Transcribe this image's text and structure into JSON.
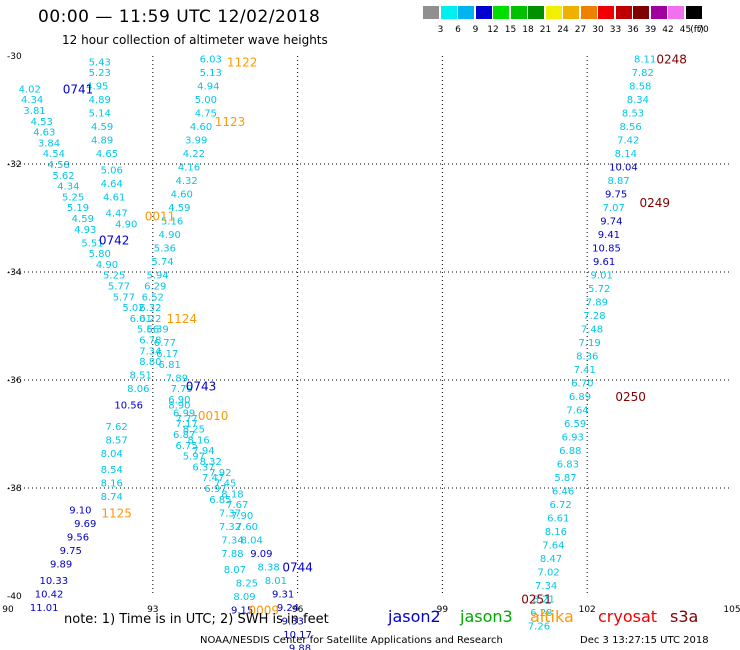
{
  "header": {
    "title": "00:00 — 11:59 UTC 12/02/2018",
    "subtitle": "12 hour collection of altimeter wave heights"
  },
  "color_scale": {
    "ticks": [
      "3",
      "6",
      "9",
      "12",
      "15",
      "18",
      "21",
      "24",
      "27",
      "30",
      "33",
      "36",
      "39",
      "42",
      "45",
      "70",
      "(ft)"
    ],
    "colors": [
      "#909090",
      "#00f0f0",
      "#00b4f0",
      "#0000d0",
      "#00e000",
      "#00c000",
      "#009000",
      "#f0f000",
      "#f0b000",
      "#f08000",
      "#f00000",
      "#c00000",
      "#800000",
      "#a000a0",
      "#f070f0",
      "#000000"
    ]
  },
  "chart_data": {
    "type": "scatter",
    "title": "00:00 — 11:59 UTC 12/02/2018",
    "subtitle": "12 hour collection of altimeter wave heights",
    "xlim": [
      90,
      105
    ],
    "ylim": [
      -40,
      -30
    ],
    "x_ticks": [
      "90",
      "93",
      "96",
      "99",
      "102",
      "105"
    ],
    "y_ticks": [
      "-30",
      "-32",
      "-34",
      "-36",
      "-38",
      "-40"
    ],
    "grid": true,
    "point_colors": {
      "c": "#00c8e6",
      "b": "#0000c8"
    },
    "time_colors": {
      "jason2": "#0000cc",
      "altika": "#ff9900",
      "s3a": "#800000"
    },
    "points": [
      [
        91.9,
        -30.1,
        "5.43",
        "c"
      ],
      [
        91.9,
        -30.3,
        "5.23",
        "c"
      ],
      [
        91.85,
        -30.55,
        "4.95",
        "c"
      ],
      [
        91.9,
        -30.8,
        "4.89",
        "c"
      ],
      [
        91.9,
        -31.05,
        "5.14",
        "c"
      ],
      [
        91.95,
        -31.3,
        "4.59",
        "c"
      ],
      [
        91.95,
        -31.55,
        "4.89",
        "c"
      ],
      [
        92.05,
        -31.8,
        "4.65",
        "c"
      ],
      [
        92.15,
        -32.1,
        "5.06",
        "c"
      ],
      [
        92.15,
        -32.35,
        "4.64",
        "c"
      ],
      [
        92.2,
        -32.6,
        "4.61",
        "c"
      ],
      [
        92.25,
        -32.9,
        "4.47",
        "c"
      ],
      [
        92.45,
        -33.1,
        "4.90",
        "c"
      ],
      [
        90.45,
        -30.6,
        "4.02",
        "c"
      ],
      [
        90.5,
        -30.8,
        "4.34",
        "c"
      ],
      [
        90.55,
        -31.0,
        "3.81",
        "c"
      ],
      [
        90.7,
        -31.2,
        "4.53",
        "c"
      ],
      [
        90.75,
        -31.4,
        "4.63",
        "c"
      ],
      [
        90.85,
        -31.6,
        "3.84",
        "c"
      ],
      [
        90.95,
        -31.8,
        "4.54",
        "c"
      ],
      [
        91.05,
        -32.0,
        "4.58",
        "c"
      ],
      [
        91.15,
        -32.2,
        "5.62",
        "c"
      ],
      [
        91.25,
        -32.4,
        "4.34",
        "c"
      ],
      [
        91.35,
        -32.6,
        "5.25",
        "c"
      ],
      [
        91.45,
        -32.8,
        "5.19",
        "c"
      ],
      [
        91.55,
        -33.0,
        "4.59",
        "c"
      ],
      [
        91.6,
        -33.2,
        "4.93",
        "c"
      ],
      [
        91.75,
        -33.45,
        "5.51",
        "c"
      ],
      [
        91.9,
        -33.65,
        "5.80",
        "c"
      ],
      [
        92.05,
        -33.85,
        "4.90",
        "c"
      ],
      [
        92.2,
        -34.05,
        "5.25",
        "c"
      ],
      [
        92.3,
        -34.25,
        "5.77",
        "c"
      ],
      [
        92.4,
        -34.45,
        "5.77",
        "c"
      ],
      [
        92.6,
        -34.65,
        "5.02",
        "c"
      ],
      [
        92.75,
        -34.85,
        "6.01",
        "c"
      ],
      [
        92.9,
        -35.05,
        "5.56",
        "c"
      ],
      [
        92.95,
        -35.25,
        "6.78",
        "c"
      ],
      [
        92.95,
        -35.45,
        "7.34",
        "c"
      ],
      [
        92.95,
        -35.65,
        "8.80",
        "c"
      ],
      [
        92.75,
        -35.9,
        "8.51",
        "c"
      ],
      [
        92.7,
        -36.15,
        "8.06",
        "c"
      ],
      [
        92.5,
        -36.45,
        "10.56",
        "b"
      ],
      [
        92.25,
        -36.85,
        "7.62",
        "c"
      ],
      [
        92.25,
        -37.1,
        "8.57",
        "c"
      ],
      [
        92.15,
        -37.35,
        "8.04",
        "c"
      ],
      [
        92.15,
        -37.65,
        "8.54",
        "c"
      ],
      [
        92.15,
        -37.9,
        "8.16",
        "c"
      ],
      [
        92.15,
        -38.15,
        "8.74",
        "c"
      ],
      [
        91.5,
        -38.4,
        "9.10",
        "b"
      ],
      [
        91.6,
        -38.65,
        "9.69",
        "b"
      ],
      [
        91.45,
        -38.9,
        "9.56",
        "b"
      ],
      [
        91.3,
        -39.15,
        "9.75",
        "b"
      ],
      [
        91.1,
        -39.4,
        "9.89",
        "b"
      ],
      [
        90.95,
        -39.7,
        "10.33",
        "b"
      ],
      [
        90.85,
        -39.95,
        "10.42",
        "b"
      ],
      [
        90.75,
        -40.2,
        "11.01",
        "b"
      ],
      [
        94.2,
        -30.05,
        "6.03",
        "c"
      ],
      [
        94.2,
        -30.3,
        "5.13",
        "c"
      ],
      [
        94.15,
        -30.55,
        "4.94",
        "c"
      ],
      [
        94.1,
        -30.8,
        "5.00",
        "c"
      ],
      [
        94.1,
        -31.05,
        "4.75",
        "c"
      ],
      [
        94.0,
        -31.3,
        "4.60",
        "c"
      ],
      [
        93.9,
        -31.55,
        "3.99",
        "c"
      ],
      [
        93.85,
        -31.8,
        "4.22",
        "c"
      ],
      [
        93.75,
        -32.05,
        "4.16",
        "c"
      ],
      [
        93.7,
        -32.3,
        "4.32",
        "c"
      ],
      [
        93.6,
        -32.55,
        "4.60",
        "c"
      ],
      [
        93.55,
        -32.8,
        "4.59",
        "c"
      ],
      [
        93.4,
        -33.05,
        "5.16",
        "c"
      ],
      [
        93.35,
        -33.3,
        "4.90",
        "c"
      ],
      [
        93.25,
        -33.55,
        "5.36",
        "c"
      ],
      [
        93.2,
        -33.8,
        "5.74",
        "c"
      ],
      [
        93.1,
        -34.05,
        "5.94",
        "c"
      ],
      [
        93.05,
        -34.25,
        "6.29",
        "c"
      ],
      [
        93.0,
        -34.45,
        "6.52",
        "c"
      ],
      [
        92.95,
        -34.65,
        "6.32",
        "c"
      ],
      [
        92.95,
        -34.85,
        "6.22",
        "c"
      ],
      [
        93.1,
        -35.05,
        "6.39",
        "c"
      ],
      [
        93.25,
        -35.3,
        "6.77",
        "c"
      ],
      [
        93.3,
        -35.5,
        "6.17",
        "c"
      ],
      [
        93.35,
        -35.7,
        "6.81",
        "c"
      ],
      [
        93.5,
        -35.95,
        "7.89",
        "c"
      ],
      [
        93.6,
        -36.15,
        "7.79",
        "c"
      ],
      [
        93.55,
        -36.35,
        "6.90",
        "c"
      ],
      [
        93.65,
        -36.6,
        "6.99",
        "c"
      ],
      [
        93.7,
        -36.8,
        "7.17",
        "c"
      ],
      [
        93.65,
        -37.0,
        "6.87",
        "c"
      ],
      [
        93.7,
        -37.2,
        "6.75",
        "c"
      ],
      [
        93.85,
        -37.4,
        "5.97",
        "c"
      ],
      [
        94.05,
        -37.6,
        "6.37",
        "c"
      ],
      [
        94.25,
        -37.8,
        "7.47",
        "c"
      ],
      [
        94.3,
        -38.0,
        "6.97",
        "c"
      ],
      [
        94.4,
        -38.2,
        "6.85",
        "c"
      ],
      [
        94.6,
        -38.45,
        "7.37",
        "c"
      ],
      [
        94.6,
        -38.7,
        "7.32",
        "c"
      ],
      [
        94.65,
        -38.95,
        "7.34",
        "c"
      ],
      [
        94.65,
        -39.2,
        "7.88",
        "c"
      ],
      [
        94.7,
        -39.5,
        "8.07",
        "c"
      ],
      [
        94.95,
        -39.75,
        "8.25",
        "c"
      ],
      [
        94.9,
        -40.0,
        "8.09",
        "c"
      ],
      [
        94.85,
        -40.25,
        "9.15",
        "b"
      ],
      [
        93.55,
        -36.45,
        "8.90",
        "c"
      ],
      [
        93.7,
        -36.7,
        "7.77",
        "c"
      ],
      [
        93.85,
        -36.9,
        "8.25",
        "c"
      ],
      [
        93.95,
        -37.1,
        "8.16",
        "c"
      ],
      [
        94.05,
        -37.3,
        "7.94",
        "c"
      ],
      [
        94.2,
        -37.5,
        "8.32",
        "c"
      ],
      [
        94.4,
        -37.7,
        "7.92",
        "c"
      ],
      [
        94.5,
        -37.9,
        "7.45",
        "c"
      ],
      [
        94.65,
        -38.1,
        "8.18",
        "c"
      ],
      [
        94.75,
        -38.3,
        "7.67",
        "c"
      ],
      [
        94.85,
        -38.5,
        "7.90",
        "c"
      ],
      [
        94.95,
        -38.7,
        "7.60",
        "c"
      ],
      [
        95.05,
        -38.95,
        "8.04",
        "c"
      ],
      [
        95.25,
        -39.2,
        "9.09",
        "b"
      ],
      [
        95.4,
        -39.45,
        "8.38",
        "c"
      ],
      [
        95.55,
        -39.7,
        "8.01",
        "c"
      ],
      [
        95.7,
        -39.95,
        "9.31",
        "b"
      ],
      [
        95.8,
        -40.2,
        "9.24",
        "b"
      ],
      [
        95.9,
        -40.45,
        "9.33",
        "b"
      ],
      [
        96.0,
        -40.7,
        "10.17",
        "b"
      ],
      [
        96.05,
        -40.95,
        "9.88",
        "b"
      ],
      [
        103.2,
        -30.05,
        "8.11",
        "c"
      ],
      [
        103.15,
        -30.3,
        "7.82",
        "c"
      ],
      [
        103.1,
        -30.55,
        "8.58",
        "c"
      ],
      [
        103.05,
        -30.8,
        "8.34",
        "c"
      ],
      [
        102.95,
        -31.05,
        "8.53",
        "c"
      ],
      [
        102.9,
        -31.3,
        "8.56",
        "c"
      ],
      [
        102.85,
        -31.55,
        "7.42",
        "c"
      ],
      [
        102.8,
        -31.8,
        "8.14",
        "c"
      ],
      [
        102.75,
        -32.05,
        "10.04",
        "b"
      ],
      [
        102.65,
        -32.3,
        "8.87",
        "c"
      ],
      [
        102.6,
        -32.55,
        "9.75",
        "b"
      ],
      [
        102.55,
        -32.8,
        "7.07",
        "c"
      ],
      [
        102.5,
        -33.05,
        "9.74",
        "b"
      ],
      [
        102.45,
        -33.3,
        "9.41",
        "b"
      ],
      [
        102.4,
        -33.55,
        "10.85",
        "b"
      ],
      [
        102.35,
        -33.8,
        "9.61",
        "b"
      ],
      [
        102.3,
        -34.05,
        "9.01",
        "c"
      ],
      [
        102.25,
        -34.3,
        "5.72",
        "c"
      ],
      [
        102.2,
        -34.55,
        "7.89",
        "c"
      ],
      [
        102.15,
        -34.8,
        "7.28",
        "c"
      ],
      [
        102.1,
        -35.05,
        "7.48",
        "c"
      ],
      [
        102.05,
        -35.3,
        "7.19",
        "c"
      ],
      [
        102.0,
        -35.55,
        "8.36",
        "c"
      ],
      [
        101.95,
        -35.8,
        "7.41",
        "c"
      ],
      [
        101.9,
        -36.05,
        "6.70",
        "c"
      ],
      [
        101.85,
        -36.3,
        "6.89",
        "c"
      ],
      [
        101.8,
        -36.55,
        "7.64",
        "c"
      ],
      [
        101.75,
        -36.8,
        "6.59",
        "c"
      ],
      [
        101.7,
        -37.05,
        "6.93",
        "c"
      ],
      [
        101.65,
        -37.3,
        "6.88",
        "c"
      ],
      [
        101.6,
        -37.55,
        "6.83",
        "c"
      ],
      [
        101.55,
        -37.8,
        "5.87",
        "c"
      ],
      [
        101.5,
        -38.05,
        "6.46",
        "c"
      ],
      [
        101.45,
        -38.3,
        "6.72",
        "c"
      ],
      [
        101.4,
        -38.55,
        "6.61",
        "c"
      ],
      [
        101.35,
        -38.8,
        "8.16",
        "c"
      ],
      [
        101.3,
        -39.05,
        "7.64",
        "c"
      ],
      [
        101.25,
        -39.3,
        "8.47",
        "c"
      ],
      [
        101.2,
        -39.55,
        "7.02",
        "c"
      ],
      [
        101.15,
        -39.8,
        "7.34",
        "c"
      ],
      [
        101.1,
        -40.05,
        "8.21",
        "c"
      ],
      [
        101.05,
        -40.3,
        "6.28",
        "c"
      ],
      [
        101.0,
        -40.55,
        "7.26",
        "c"
      ]
    ],
    "time_labels": [
      [
        94.85,
        -30.1,
        "1122",
        "altika"
      ],
      [
        91.45,
        -30.6,
        "0741",
        "jason2"
      ],
      [
        94.6,
        -31.2,
        "1123",
        "altika"
      ],
      [
        93.15,
        -32.95,
        "0011",
        "altika"
      ],
      [
        92.2,
        -33.4,
        "0742",
        "jason2"
      ],
      [
        93.6,
        -34.85,
        "1124",
        "altika"
      ],
      [
        94.0,
        -36.1,
        "0743",
        "jason2"
      ],
      [
        94.25,
        -36.65,
        "0010",
        "altika"
      ],
      [
        92.25,
        -38.45,
        "1125",
        "altika"
      ],
      [
        96.0,
        -39.45,
        "0744",
        "jason2"
      ],
      [
        95.3,
        -40.25,
        "0009",
        "altika"
      ],
      [
        103.75,
        -30.05,
        "0248",
        "s3a"
      ],
      [
        103.4,
        -32.7,
        "0249",
        "s3a"
      ],
      [
        102.9,
        -36.3,
        "0250",
        "s3a"
      ],
      [
        100.95,
        -40.05,
        "0251",
        "s3a"
      ]
    ]
  },
  "footer": {
    "note": "note: 1) Time is in UTC; 2) SWH is in feet",
    "legend": [
      {
        "name": "jason2",
        "color": "#0000cc"
      },
      {
        "name": "jason3",
        "color": "#00aa00"
      },
      {
        "name": "altika",
        "color": "#ff9900"
      },
      {
        "name": "cryosat",
        "color": "#ee0000"
      },
      {
        "name": "s3a",
        "color": "#800000"
      }
    ],
    "credit": "NOAA/NESDIS Center for Satellite Applications and Research",
    "timestamp": "Dec  3 13:27:15 UTC 2018"
  }
}
